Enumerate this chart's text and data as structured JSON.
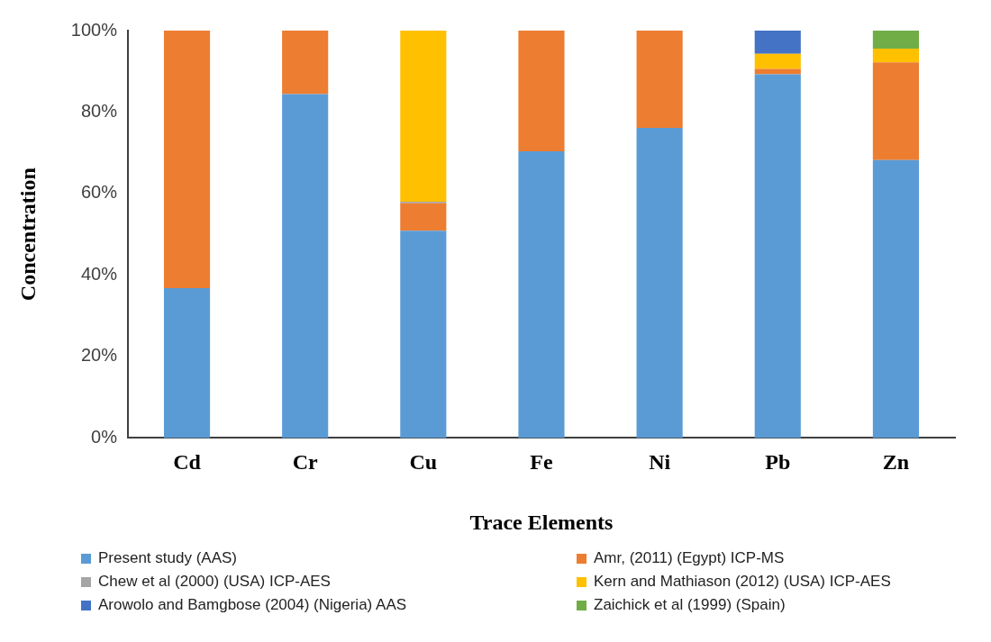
{
  "chart_data": {
    "type": "bar",
    "stacked": true,
    "xlabel": "Trace Elements",
    "ylabel": "Concentration",
    "categories": [
      "Cd",
      "Cr",
      "Cu",
      "Fe",
      "Ni",
      "Pb",
      "Zn"
    ],
    "series": [
      {
        "name": "Present study (AAS)",
        "color": "#5b9bd5",
        "values": [
          36.8,
          84.4,
          50.9,
          70.4,
          76.1,
          89.3,
          68.2
        ]
      },
      {
        "name": "Amr, (2011) (Egypt) ICP-MS",
        "color": "#ed7d31",
        "values": [
          63.2,
          15.6,
          6.7,
          29.6,
          23.9,
          1.3,
          24.0
        ]
      },
      {
        "name": "Chew et al (2000) (USA) ICP-AES",
        "color": "#a5a5a5",
        "values": [
          0,
          0,
          0.4,
          0,
          0,
          0,
          0
        ]
      },
      {
        "name": "Kern and Mathiason (2012) (USA) ICP-AES",
        "color": "#ffc000",
        "values": [
          0,
          0,
          42.0,
          0,
          0,
          3.7,
          3.4
        ]
      },
      {
        "name": "Arowolo and Bamgbose (2004) (Nigeria) AAS",
        "color": "#4472c4",
        "values": [
          0,
          0,
          0,
          0,
          0,
          5.7,
          0
        ]
      },
      {
        "name": "Zaichick et al (1999) (Spain)",
        "color": "#70ad47",
        "values": [
          0,
          0,
          0,
          0,
          0,
          0,
          4.4
        ]
      }
    ],
    "ylim": [
      0,
      100
    ],
    "yticks": [
      {
        "value": 0,
        "label": "0%"
      },
      {
        "value": 20,
        "label": "20%"
      },
      {
        "value": 40,
        "label": "40%"
      },
      {
        "value": 60,
        "label": "60%"
      },
      {
        "value": 80,
        "label": "80%"
      },
      {
        "value": 100,
        "label": "100%"
      }
    ],
    "grid": false,
    "legend": "bottom"
  }
}
